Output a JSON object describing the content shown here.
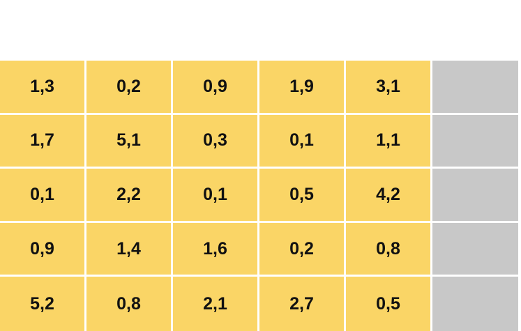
{
  "table": {
    "rows": [
      [
        "1,3",
        "0,2",
        "0,9",
        "1,9",
        "3,1"
      ],
      [
        "1,7",
        "5,1",
        "0,3",
        "0,1",
        "1,1"
      ],
      [
        "0,1",
        "2,2",
        "0,1",
        "0,5",
        "4,2"
      ],
      [
        "0,9",
        "1,4",
        "1,6",
        "0,2",
        "0,8"
      ],
      [
        "5,2",
        "0,8",
        "2,1",
        "2,7",
        "0,5"
      ]
    ],
    "value_color": "#FAD566",
    "blank_column_color": "#C8C8C8"
  }
}
